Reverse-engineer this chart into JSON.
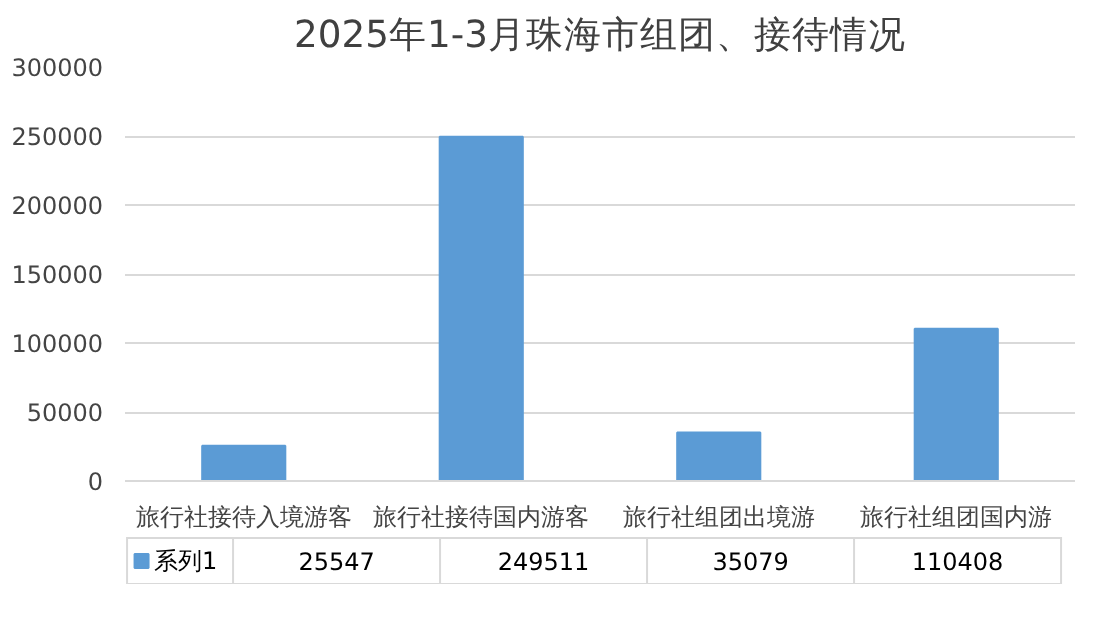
{
  "chart_data": {
    "type": "bar",
    "title": "2025年1-3月珠海市组团、接待情况",
    "categories": [
      "旅行社接待入境游客",
      "旅行社接待国内游客",
      "旅行社组团出境游",
      "旅行社组团国内游"
    ],
    "series": [
      {
        "name": "系列1",
        "color": "#5b9bd5",
        "values": [
          25547,
          249511,
          35079,
          110408
        ]
      }
    ],
    "ylim": [
      0,
      300000
    ],
    "yticks": [
      0,
      50000,
      100000,
      150000,
      200000,
      250000,
      300000
    ],
    "grid": "y",
    "legend": "bottom",
    "data_labels": true
  }
}
